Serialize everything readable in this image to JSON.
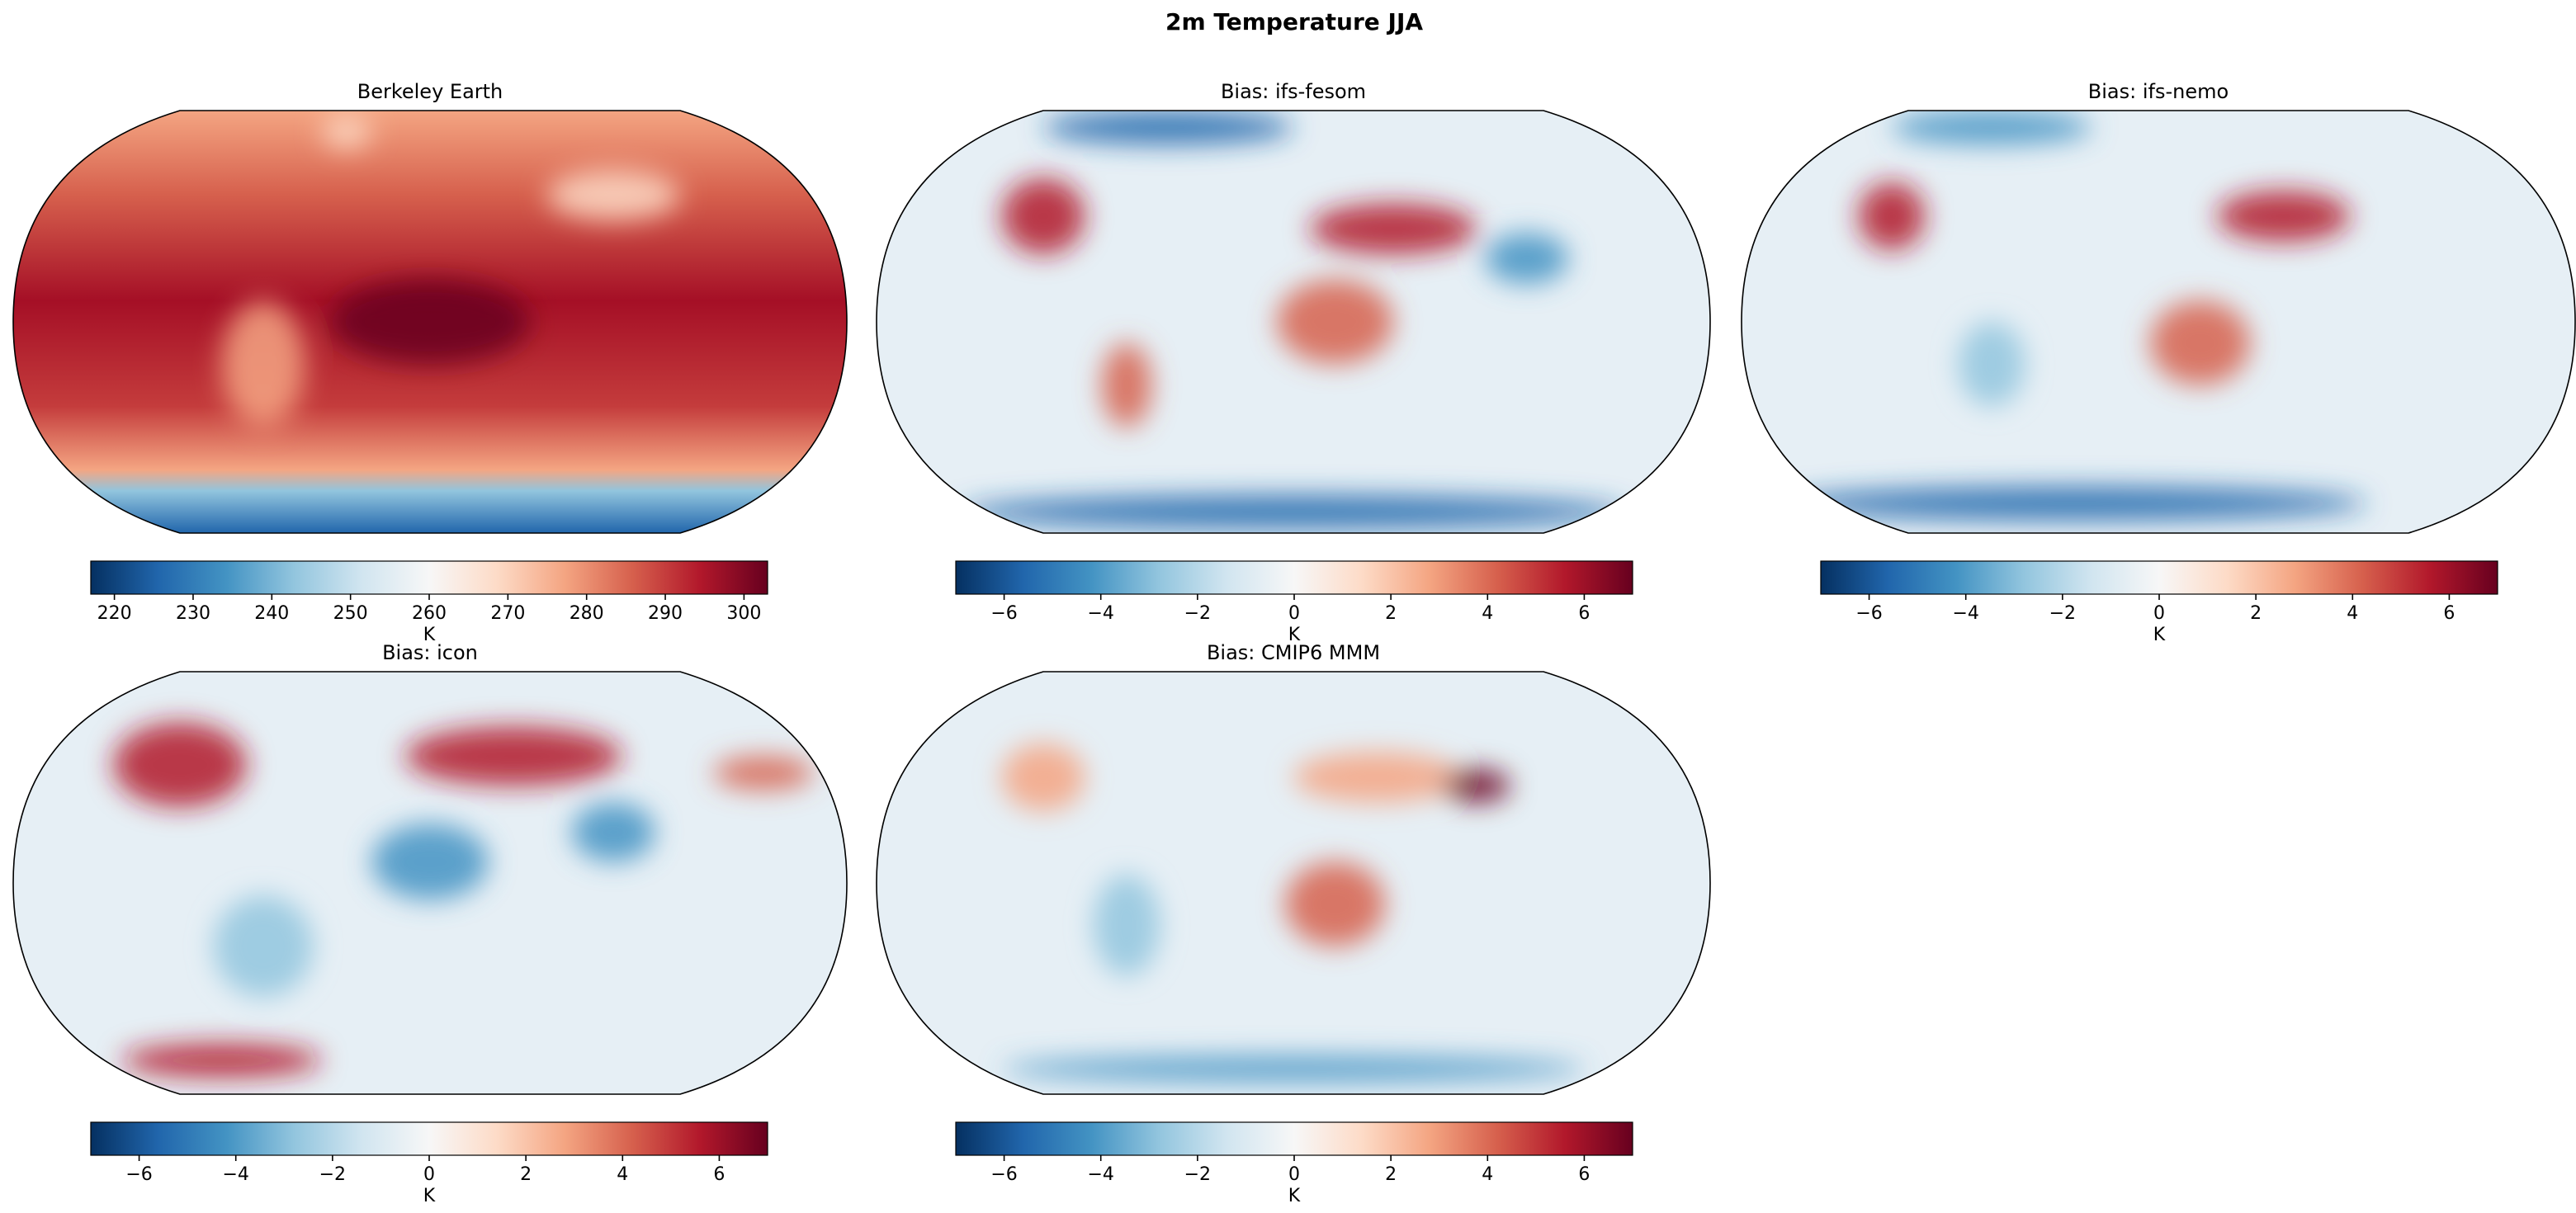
{
  "title": "2m Temperature JJA",
  "panels": [
    {
      "title": "Berkeley Earth",
      "colorbar": {
        "label": "K",
        "lim": [
          217,
          303
        ],
        "ticks": [
          220,
          230,
          240,
          250,
          260,
          270,
          280,
          290,
          300
        ]
      }
    },
    {
      "title": "Bias: ifs-fesom",
      "colorbar": {
        "label": "K",
        "lim": [
          -7,
          7
        ],
        "ticks": [
          {
            "value": -6,
            "label": "−6"
          },
          {
            "value": -4,
            "label": "−4"
          },
          {
            "value": -2,
            "label": "−2"
          },
          0,
          2,
          4,
          6
        ]
      }
    },
    {
      "title": "Bias: ifs-nemo",
      "colorbar": {
        "label": "K",
        "lim": [
          -7,
          7
        ],
        "ticks": [
          {
            "value": -6,
            "label": "−6"
          },
          {
            "value": -4,
            "label": "−4"
          },
          {
            "value": -2,
            "label": "−2"
          },
          0,
          2,
          4,
          6
        ]
      }
    },
    {
      "title": "Bias: icon",
      "colorbar": {
        "label": "K",
        "lim": [
          -7,
          7
        ],
        "ticks": [
          {
            "value": -6,
            "label": "−6"
          },
          {
            "value": -4,
            "label": "−4"
          },
          {
            "value": -2,
            "label": "−2"
          },
          0,
          2,
          4,
          6
        ]
      }
    },
    {
      "title": "Bias: CMIP6 MMM",
      "colorbar": {
        "label": "K",
        "lim": [
          -7,
          7
        ],
        "ticks": [
          {
            "value": -6,
            "label": "−6"
          },
          {
            "value": -4,
            "label": "−4"
          },
          {
            "value": -2,
            "label": "−2"
          },
          0,
          2,
          4,
          6
        ]
      }
    }
  ]
}
